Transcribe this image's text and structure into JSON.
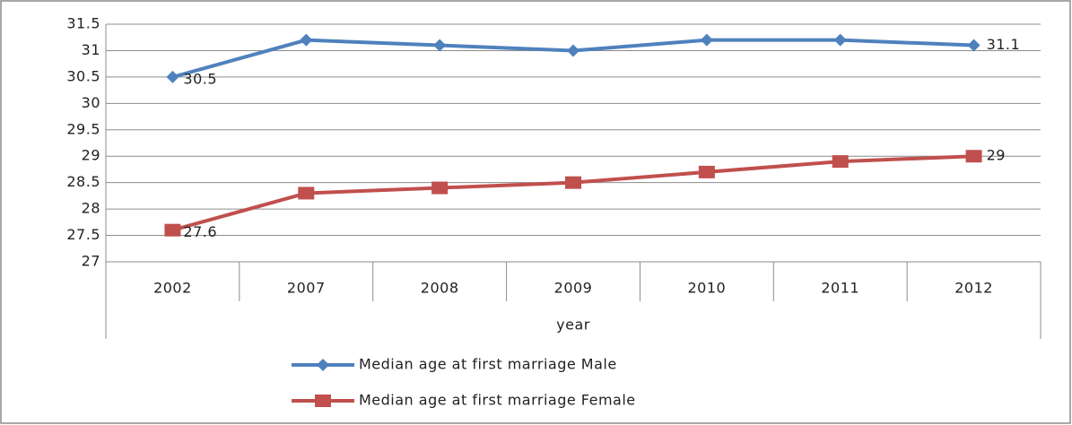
{
  "chart_data": {
    "type": "line",
    "x_label": "year",
    "categories": [
      "2002",
      "2007",
      "2008",
      "2009",
      "2010",
      "2011",
      "2012"
    ],
    "series": [
      {
        "name": "Median age at first marriage Male",
        "color": "#4f81bd",
        "marker": "diamond",
        "values": [
          30.5,
          31.2,
          31.1,
          31.0,
          31.2,
          31.2,
          31.1
        ],
        "value_labels": [
          "30.5",
          null,
          null,
          null,
          null,
          null,
          "31.1"
        ]
      },
      {
        "name": "Median age at first marriage Female",
        "color": "#c0504d",
        "marker": "square",
        "values": [
          27.6,
          28.3,
          28.4,
          28.5,
          28.7,
          28.9,
          29.0
        ],
        "value_labels": [
          "27.6",
          null,
          null,
          null,
          null,
          null,
          "29"
        ]
      }
    ],
    "ylim": [
      27,
      31.5
    ],
    "yticks": [
      27,
      27.5,
      28,
      28.5,
      29,
      29.5,
      30,
      30.5,
      31,
      31.5
    ],
    "grid": true,
    "legend": "bottom"
  }
}
